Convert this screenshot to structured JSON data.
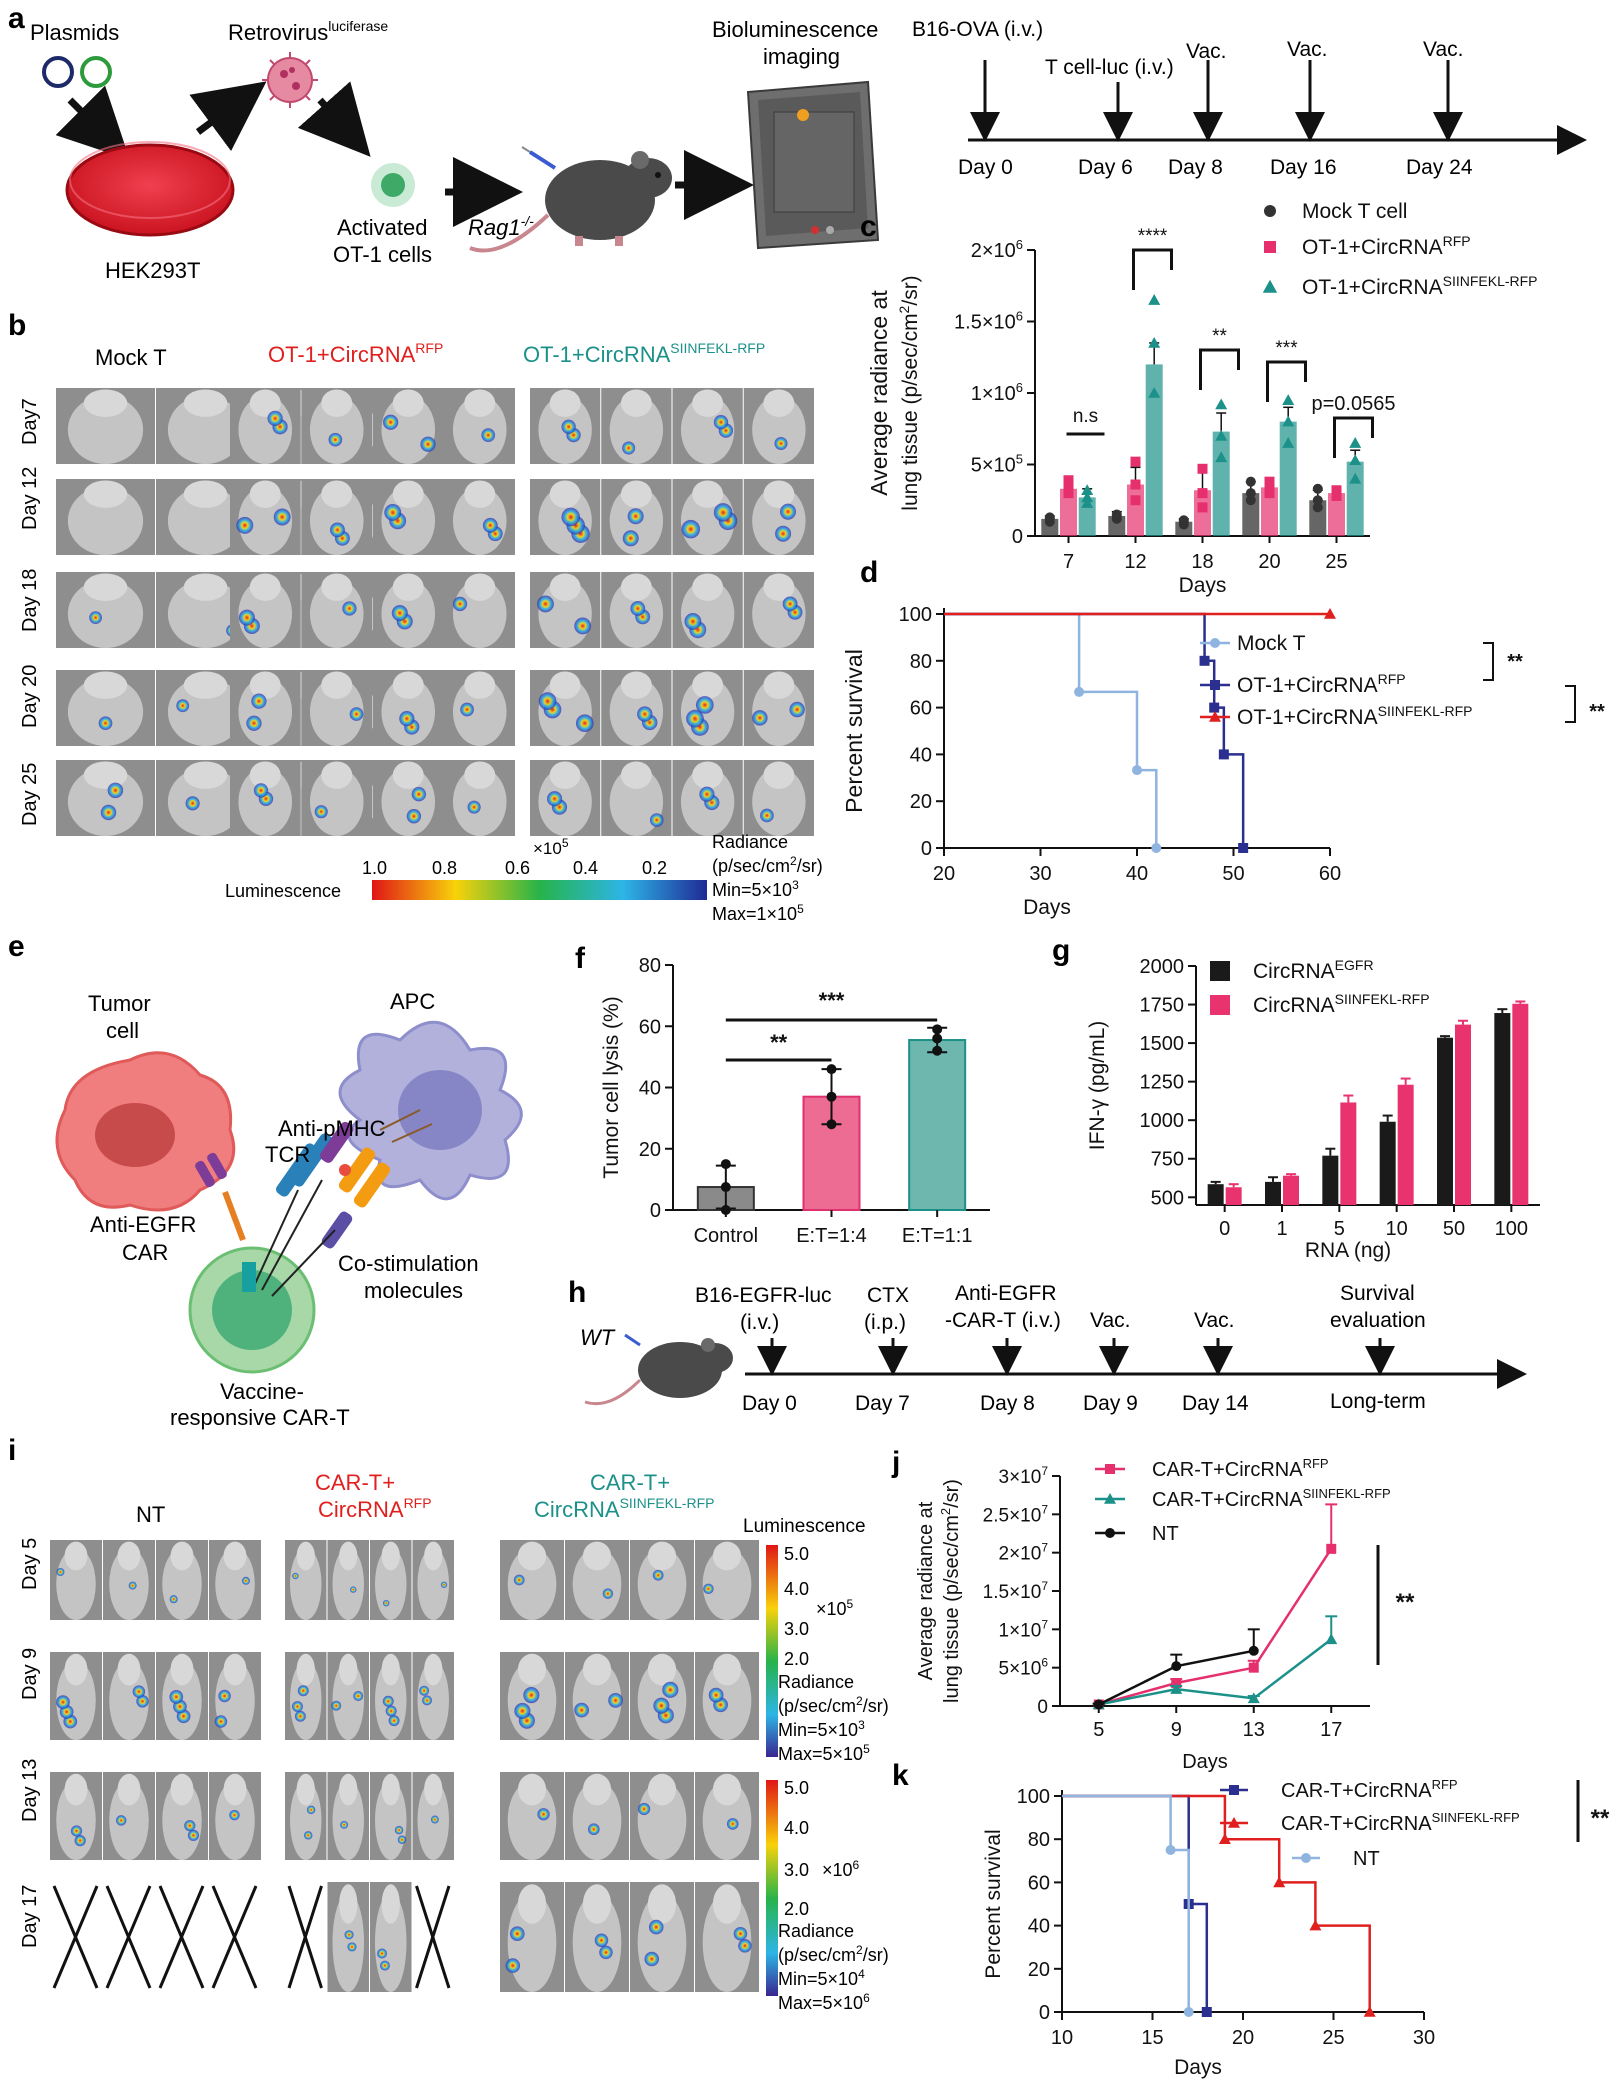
{
  "panels": {
    "a": {
      "label": "a",
      "plasmids": "Plasmids",
      "retrovirus": "Retrovirus",
      "retrovirus_sup": "luciferase",
      "hek": "HEK293T",
      "activated": "Activated",
      "ot1_cells": "OT-1 cells",
      "rag": "Rag1",
      "rag_sup": "-/-",
      "biolum1": "Bioluminescence",
      "biolum2": "imaging",
      "timeline_events": [
        {
          "label": "B16-OVA (i.v.)",
          "day_label": "Day 0"
        },
        {
          "label": "T cell-luc (i.v.)",
          "day_label": "Day 6"
        },
        {
          "label": "Vac.",
          "day_label": "Day 8"
        },
        {
          "label": "Vac.",
          "day_label": "Day 16"
        },
        {
          "label": "Vac.",
          "day_label": "Day 24"
        }
      ]
    },
    "b": {
      "label": "b",
      "groups": [
        {
          "name": "Mock T",
          "sup": ""
        },
        {
          "name": "OT-1+CircRNA",
          "sup": "RFP"
        },
        {
          "name": "OT-1+CircRNA",
          "sup": "SIINFEKL-RFP"
        }
      ],
      "rows": [
        "Day7",
        "Day 12",
        "Day 18",
        "Day 20",
        "Day 25"
      ],
      "colorbar_title": "Luminescence",
      "colorbar_ticks": [
        "1.0",
        "0.8",
        "0.6",
        "0.4",
        "0.2"
      ],
      "colorbar_exp": "×10",
      "colorbar_exp_sup": "5",
      "radiance": "Radiance",
      "unit1": "(p/sec/cm",
      "unit_sup": "2",
      "unit2": "/sr)",
      "min_base": "Min=5×10",
      "min_sup": "3",
      "max_base": "Max=1×10",
      "max_sup": "5",
      "colors": [
        "#e01616",
        "#f8d20a",
        "#27b34a",
        "#2db5e6",
        "#1f2a96"
      ]
    },
    "c": {
      "label": "c"
    },
    "d": {
      "label": "d"
    },
    "e": {
      "label": "e",
      "tumor1": "Tumor",
      "tumor2": "cell",
      "apc": "APC",
      "antipmhc": "Anti-pMHC",
      "tcr": "TCR",
      "antiegfr": "Anti-EGFR",
      "car": "CAR",
      "costim1": "Co-stimulation",
      "costim2": "molecules",
      "vaccine1": "Vaccine-",
      "vaccine2": "responsive CAR-T"
    },
    "f": {
      "label": "f"
    },
    "g": {
      "label": "g"
    },
    "h": {
      "label": "h",
      "wt": "WT",
      "events": [
        {
          "line1": "B16-EGFR-luc",
          "line2": "(i.v.)",
          "day_label": "Day 0"
        },
        {
          "line1": "CTX",
          "line2": "(i.p.)",
          "day_label": "Day 7"
        },
        {
          "line1": "Anti-EGFR",
          "line2": "-CAR-T (i.v.)",
          "day_label": "Day 8"
        },
        {
          "line1": "",
          "line2": "Vac.",
          "day_label": "Day 9"
        },
        {
          "line1": "",
          "line2": "Vac.",
          "day_label": "Day 14"
        },
        {
          "line1": "Survival",
          "line2": "evaluation",
          "day_label": "Long-term"
        }
      ]
    },
    "i": {
      "label": "i",
      "groups": [
        {
          "line1": "NT",
          "line2": "",
          "sup": ""
        },
        {
          "line1": "CAR-T+",
          "line2": "CircRNA",
          "sup": "RFP"
        },
        {
          "line1": "CAR-T+",
          "line2": "CircRNA",
          "sup": "SIINFEKL-RFP"
        }
      ],
      "rows": [
        "Day 5",
        "Day 9",
        "Day 13",
        "Day 17"
      ],
      "luminescence": "Luminescence",
      "scale1_ticks": [
        "5.0",
        "4.0",
        "3.0",
        "2.0"
      ],
      "scale1_exp": "×10",
      "scale1_exp_sup": "5",
      "scale1_min": "Min=5×10",
      "scale1_min_sup": "3",
      "scale1_max": "Max=5×10",
      "scale1_max_sup": "5",
      "scale2_ticks": [
        "5.0",
        "4.0",
        "3.0",
        "2.0"
      ],
      "scale2_exp": "×10",
      "scale2_exp_sup": "6",
      "scale2_min": "Min=5×10",
      "scale2_min_sup": "4",
      "scale2_max": "Max=5×10",
      "scale2_max_sup": "6",
      "radiance": "Radiance",
      "unit1": "(p/sec/cm",
      "unit_sup": "2",
      "unit2": "/sr)"
    },
    "j": {
      "label": "j"
    },
    "k": {
      "label": "k"
    }
  },
  "chart_data": [
    {
      "panel": "c",
      "type": "bar",
      "categories": [
        "7",
        "12",
        "18",
        "20",
        "25"
      ],
      "xlabel": "Days",
      "ylabel_line1": "Average radiance at",
      "ylabel_line2": "lung tissue (p/sec/cm",
      "ylabel_sup": "2",
      "ylabel_tail": "/sr)",
      "ylim": [
        0,
        2000000
      ],
      "yticks": [
        {
          "value": 0,
          "base": "0",
          "sup": ""
        },
        {
          "value": 500000,
          "base": "5×10",
          "sup": "5"
        },
        {
          "value": 1000000,
          "base": "1×10",
          "sup": "6"
        },
        {
          "value": 1500000,
          "base": "1.5×10",
          "sup": "6"
        },
        {
          "value": 2000000,
          "base": "2×10",
          "sup": "6"
        }
      ],
      "series": [
        {
          "name": "Mock T cell",
          "sup": "",
          "color": "#333333",
          "marker": "circle",
          "values": [
            120000,
            140000,
            100000,
            300000,
            250000
          ],
          "errors": [
            20000,
            30000,
            20000,
            80000,
            70000
          ],
          "points": [
            [
              100000,
              130000,
              120000
            ],
            [
              120000,
              150000,
              140000
            ],
            [
              80000,
              100000,
              110000
            ],
            [
              250000,
              300000,
              380000
            ],
            [
              200000,
              250000,
              330000
            ]
          ]
        },
        {
          "name": "OT-1+CircRNA",
          "sup": "RFP",
          "color": "#e6306e",
          "marker": "square",
          "values": [
            330000,
            360000,
            320000,
            340000,
            300000
          ],
          "errors": [
            50000,
            120000,
            140000,
            50000,
            40000
          ],
          "points": [
            [
              300000,
              350000,
              390000
            ],
            [
              250000,
              360000,
              520000
            ],
            [
              200000,
              300000,
              470000
            ],
            [
              300000,
              350000,
              380000
            ],
            [
              280000,
              300000,
              320000
            ]
          ]
        },
        {
          "name": "OT-1+CircRNA",
          "sup": "SIINFEKL-RFP",
          "color": "#1c9189",
          "marker": "triangle",
          "values": [
            270000,
            1200000,
            730000,
            800000,
            520000
          ],
          "errors": [
            60000,
            150000,
            130000,
            100000,
            80000
          ],
          "points": [
            [
              230000,
              270000,
              320000
            ],
            [
              1000000,
              1350000,
              1650000
            ],
            [
              550000,
              700000,
              920000
            ],
            [
              650000,
              800000,
              950000
            ],
            [
              400000,
              530000,
              650000
            ]
          ]
        }
      ],
      "annotations": [
        {
          "category": "7",
          "text": "n.s"
        },
        {
          "category": "12",
          "text": "****"
        },
        {
          "category": "18",
          "text": "**"
        },
        {
          "category": "20",
          "text": "***"
        },
        {
          "category": "25",
          "text": "p=0.0565"
        }
      ]
    },
    {
      "panel": "d",
      "type": "line",
      "xlabel": "Days",
      "ylabel": "Percent survival",
      "xlim": [
        20,
        60
      ],
      "ylim": [
        0,
        100
      ],
      "xticks": [
        20,
        30,
        40,
        50,
        60
      ],
      "yticks": [
        0,
        20,
        40,
        60,
        80,
        100
      ],
      "series": [
        {
          "name": "Mock T",
          "sup": "",
          "color": "#8fb4e0",
          "marker": "circle",
          "steps": [
            [
              20,
              100
            ],
            [
              34,
              100
            ],
            [
              34,
              66.7
            ],
            [
              40,
              66.7
            ],
            [
              40,
              33.3
            ],
            [
              42,
              33.3
            ],
            [
              42,
              0
            ]
          ],
          "marks": [
            [
              34,
              66.7
            ],
            [
              40,
              33.3
            ],
            [
              42,
              0
            ]
          ]
        },
        {
          "name": "OT-1+CircRNA",
          "sup": "RFP",
          "color": "#2b2f8f",
          "marker": "square",
          "steps": [
            [
              20,
              100
            ],
            [
              47,
              100
            ],
            [
              47,
              80
            ],
            [
              48,
              80
            ],
            [
              48,
              60
            ],
            [
              49,
              60
            ],
            [
              49,
              40
            ],
            [
              51,
              40
            ],
            [
              51,
              0
            ]
          ],
          "marks": [
            [
              47,
              80
            ],
            [
              48,
              60
            ],
            [
              49,
              40
            ],
            [
              51,
              0
            ]
          ]
        },
        {
          "name": "OT-1+CircRNA",
          "sup": "SIINFEKL-RFP",
          "color": "#e0201f",
          "marker": "triangle",
          "steps": [
            [
              20,
              100
            ],
            [
              60,
              100
            ]
          ],
          "marks": [
            [
              60,
              100
            ]
          ]
        }
      ],
      "brackets": [
        {
          "text": "**"
        },
        {
          "text": "**"
        }
      ]
    },
    {
      "panel": "f",
      "type": "bar",
      "categories": [
        "Control",
        "E:T=1:4",
        "E:T=1:1"
      ],
      "ylabel": "Tumor cell lysis (%)",
      "ylim": [
        0,
        80
      ],
      "yticks": [
        0,
        20,
        40,
        60,
        80
      ],
      "values": [
        7.5,
        37,
        55.5
      ],
      "errors": [
        7,
        9,
        4
      ],
      "points": [
        [
          0,
          7.5,
          15
        ],
        [
          28,
          37,
          46
        ],
        [
          52,
          56,
          59
        ]
      ],
      "colors": [
        "#8a8a8a",
        "#ec6c93",
        "#6db7ae"
      ],
      "edge_colors": [
        "#333333",
        "#e0306e",
        "#1c9189"
      ],
      "comparisons": [
        {
          "text": "**"
        },
        {
          "text": "***"
        }
      ]
    },
    {
      "panel": "g",
      "type": "bar",
      "categories": [
        "0",
        "1",
        "5",
        "10",
        "50",
        "100"
      ],
      "xlabel": "RNA (ng)",
      "ylabel": "IFN-γ (pg/mL)",
      "ylim": [
        450,
        2000
      ],
      "yticks": [
        500,
        750,
        1000,
        1250,
        1500,
        1750,
        2000
      ],
      "series": [
        {
          "name": "CircRNA",
          "sup": "EGFR",
          "color": "#1a1a1a",
          "values": [
            585,
            600,
            770,
            990,
            1535,
            1695
          ],
          "errors": [
            15,
            30,
            45,
            40,
            10,
            25
          ]
        },
        {
          "name": "CircRNA",
          "sup": "SIINFEKL-RFP",
          "color": "#e8336e",
          "values": [
            565,
            640,
            1115,
            1230,
            1620,
            1755
          ],
          "errors": [
            20,
            10,
            45,
            40,
            25,
            15
          ]
        }
      ]
    },
    {
      "panel": "j",
      "type": "line",
      "xlabel": "Days",
      "ylabel_line1": "Average radiance at",
      "ylabel_line2": "lung tissue (p/sec/cm",
      "ylabel_sup": "2",
      "ylabel_tail": "/sr)",
      "x": [
        5,
        9,
        13,
        17
      ],
      "ylim": [
        0,
        30000000
      ],
      "yticks": [
        {
          "value": 0,
          "base": "0",
          "sup": ""
        },
        {
          "value": 5000000,
          "base": "5×10",
          "sup": "6"
        },
        {
          "value": 10000000,
          "base": "1×10",
          "sup": "7"
        },
        {
          "value": 15000000,
          "base": "1.5×10",
          "sup": "7"
        },
        {
          "value": 20000000,
          "base": "2×10",
          "sup": "7"
        },
        {
          "value": 25000000,
          "base": "2.5×10",
          "sup": "7"
        },
        {
          "value": 30000000,
          "base": "3×10",
          "sup": "7"
        }
      ],
      "series": [
        {
          "name": "CAR-T+CircRNA",
          "sup": "RFP",
          "color": "#e6306e",
          "marker": "square",
          "x": [
            5,
            9,
            13,
            17
          ],
          "values": [
            200000,
            3000000,
            5000000,
            20500000
          ],
          "errors": [
            100000,
            500000,
            900000,
            5800000
          ]
        },
        {
          "name": "CAR-T+CircRNA",
          "sup": "SIINFEKL-RFP",
          "color": "#1c9189",
          "marker": "triangle",
          "x": [
            5,
            9,
            13,
            17
          ],
          "values": [
            200000,
            2200000,
            1000000,
            8700000
          ],
          "errors": [
            100000,
            400000,
            300000,
            3000000
          ]
        },
        {
          "name": "NT",
          "sup": "",
          "color": "#111111",
          "marker": "circle",
          "x": [
            5,
            9,
            13
          ],
          "values": [
            200000,
            5200000,
            7200000
          ],
          "errors": [
            100000,
            1500000,
            2800000
          ]
        }
      ],
      "significance": "**"
    },
    {
      "panel": "k",
      "type": "line",
      "xlabel": "Days",
      "ylabel": "Percent survival",
      "xlim": [
        10,
        30
      ],
      "ylim": [
        0,
        100
      ],
      "xticks": [
        10,
        15,
        20,
        25,
        30
      ],
      "yticks": [
        0,
        20,
        40,
        60,
        80,
        100
      ],
      "series": [
        {
          "name": "CAR-T+CircRNA",
          "sup": "RFP",
          "color": "#2b2f8f",
          "marker": "square",
          "steps": [
            [
              10,
              100
            ],
            [
              17,
              100
            ],
            [
              17,
              50
            ],
            [
              18,
              50
            ],
            [
              18,
              0
            ]
          ],
          "marks": [
            [
              17,
              50
            ],
            [
              18,
              0
            ]
          ]
        },
        {
          "name": "CAR-T+CircRNA",
          "sup": "SIINFEKL-RFP",
          "color": "#e0201f",
          "marker": "triangle",
          "steps": [
            [
              10,
              100
            ],
            [
              19,
              100
            ],
            [
              19,
              80
            ],
            [
              22,
              80
            ],
            [
              22,
              60
            ],
            [
              24,
              60
            ],
            [
              24,
              40
            ],
            [
              27,
              40
            ],
            [
              27,
              0
            ]
          ],
          "marks": [
            [
              19,
              80
            ],
            [
              22,
              60
            ],
            [
              24,
              40
            ],
            [
              27,
              0
            ]
          ]
        },
        {
          "name": "NT",
          "sup": "",
          "color": "#8fb4e0",
          "marker": "circle",
          "steps": [
            [
              10,
              100
            ],
            [
              16,
              100
            ],
            [
              16,
              75
            ],
            [
              17,
              75
            ],
            [
              17,
              0
            ]
          ],
          "marks": [
            [
              16,
              75
            ],
            [
              17,
              0
            ]
          ]
        }
      ],
      "significance": "**"
    }
  ]
}
